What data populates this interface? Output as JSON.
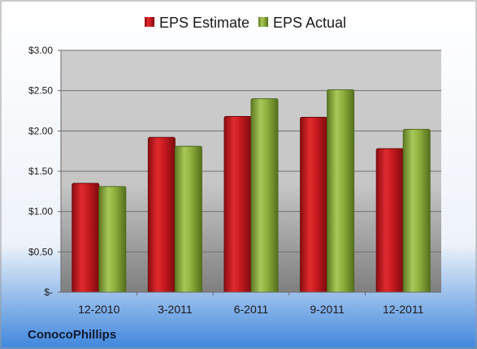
{
  "chart_data": {
    "type": "bar",
    "categories": [
      "12-2010",
      "3-2011",
      "6-2011",
      "9-2011",
      "12-2011"
    ],
    "series": [
      {
        "name": "EPS Estimate",
        "values": [
          1.35,
          1.92,
          2.18,
          2.17,
          1.78
        ],
        "color": "#c0161b"
      },
      {
        "name": "EPS Actual",
        "values": [
          1.31,
          1.81,
          2.4,
          2.51,
          2.02
        ],
        "color": "#8faf3c"
      }
    ],
    "ylim": [
      0,
      3.0
    ],
    "yticks": [
      0,
      0.5,
      1.0,
      1.5,
      2.0,
      2.5,
      3.0
    ],
    "ytick_labels": [
      "$-",
      "$0.50",
      "$1.00",
      "$1.50",
      "$2.00",
      "$2.50",
      "$3.00"
    ],
    "grid": true,
    "legend_position": "top-center"
  },
  "footer": {
    "company": "ConocoPhillips"
  }
}
